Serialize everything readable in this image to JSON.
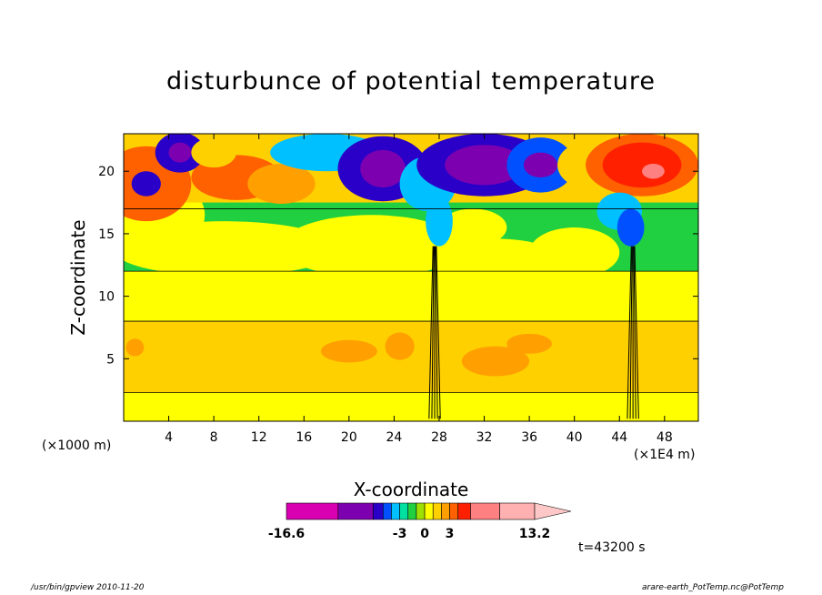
{
  "chart_data": {
    "type": "heatmap",
    "title": "disturbunce of potential temperature",
    "xlabel": "X-coordinate",
    "ylabel": "Z-coordinate",
    "x_unit_left": "(×1000 m)",
    "x_unit_right": "(×1E4 m)",
    "xlim": [
      0,
      51
    ],
    "ylim": [
      0,
      23
    ],
    "x_ticks": [
      4,
      8,
      12,
      16,
      20,
      24,
      28,
      32,
      36,
      40,
      44,
      48
    ],
    "y_ticks": [
      5,
      10,
      15,
      20
    ],
    "colorbar": {
      "min": -16.6,
      "max": 13.2,
      "tick_labels": [
        "-16.6",
        "-3",
        "0",
        "3",
        "13.2"
      ],
      "colors": [
        "#d800b0",
        "#7d00b0",
        "#2a00c8",
        "#0050ff",
        "#00c0ff",
        "#00e0a0",
        "#20d040",
        "#a0e000",
        "#ffff00",
        "#ffd000",
        "#ffa000",
        "#ff6000",
        "#ff2000",
        "#ff8080",
        "#ffb0b0"
      ]
    },
    "features": [
      {
        "region": "x 0-51, z 0-2",
        "level": "warm (yellow)"
      },
      {
        "region": "x 0-51, z 2-8",
        "level": "moderate warm (orange)"
      },
      {
        "region": "x 0-51, z 8-12",
        "level": "near zero (yellow)"
      },
      {
        "region": "x 0-51, z 12-17",
        "level": "slightly negative (green)"
      },
      {
        "region": "x 0-51, z 17-23",
        "level": "mixed strong +/- (red / purple / cyan)"
      },
      {
        "region": "x 44-48, z 18-22",
        "level": "strong positive (red, peak 13.2)"
      }
    ]
  },
  "labels": {
    "time": "t=43200 s",
    "footer_left": "/usr/bin/gpview   2010-11-20",
    "footer_right": "arare-earth_PotTemp.nc@PotTemp"
  }
}
